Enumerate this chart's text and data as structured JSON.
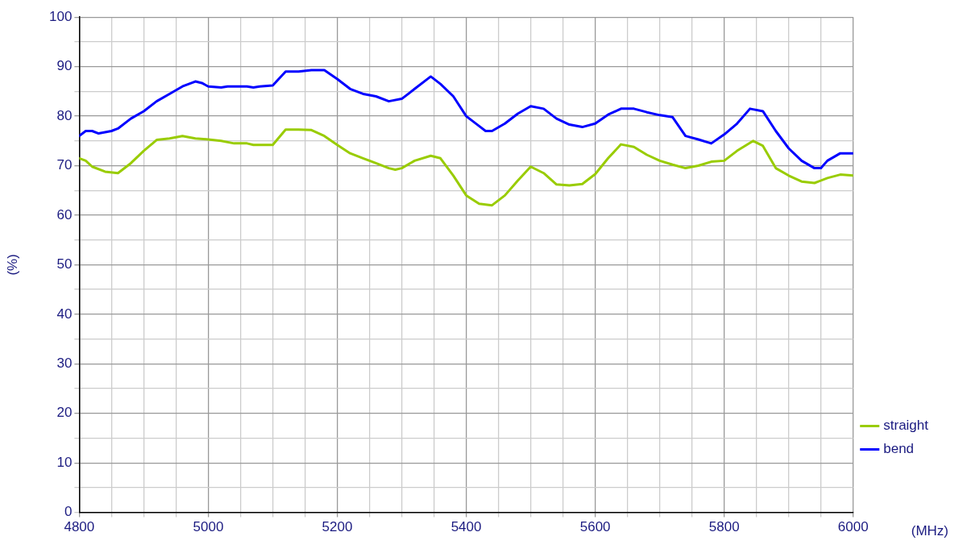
{
  "chart_data": {
    "type": "line",
    "xlabel": "(MHz)",
    "ylabel": "(%)",
    "xlim": [
      4800,
      6000
    ],
    "ylim": [
      0,
      100
    ],
    "xticks": [
      4800,
      {
        "value": 4850,
        "label": null
      },
      {
        "value": 4900,
        "label": null
      },
      {
        "value": 4950,
        "label": null
      },
      5000,
      {
        "value": 5050,
        "label": null
      },
      {
        "value": 5100,
        "label": null
      },
      {
        "value": 5150,
        "label": null
      },
      5200,
      {
        "value": 5250,
        "label": null
      },
      {
        "value": 5300,
        "label": null
      },
      {
        "value": 5350,
        "label": null
      },
      5400,
      {
        "value": 5450,
        "label": null
      },
      {
        "value": 5500,
        "label": null
      },
      {
        "value": 5550,
        "label": null
      },
      5600,
      {
        "value": 5650,
        "label": null
      },
      {
        "value": 5700,
        "label": null
      },
      {
        "value": 5750,
        "label": null
      },
      5800,
      {
        "value": 5850,
        "label": null
      },
      {
        "value": 5900,
        "label": null
      },
      {
        "value": 5950,
        "label": null
      },
      6000
    ],
    "yticks": [
      0,
      {
        "value": 5,
        "label": null
      },
      10,
      {
        "value": 15,
        "label": null
      },
      20,
      {
        "value": 25,
        "label": null
      },
      30,
      {
        "value": 35,
        "label": null
      },
      40,
      {
        "value": 45,
        "label": null
      },
      50,
      {
        "value": 55,
        "label": null
      },
      60,
      {
        "value": 65,
        "label": null
      },
      70,
      {
        "value": 75,
        "label": null
      },
      80,
      {
        "value": 85,
        "label": null
      },
      90,
      {
        "value": 95,
        "label": null
      },
      100
    ],
    "grid": true,
    "legend": "bottom right",
    "marker": "none",
    "line_style": "solid",
    "series": [
      {
        "name": "straight",
        "color": "#99cc00",
        "x": [
          4800,
          4810,
          4820,
          4840,
          4860,
          4880,
          4900,
          4920,
          4940,
          4960,
          4980,
          5000,
          5020,
          5040,
          5060,
          5070,
          5100,
          5120,
          5140,
          5160,
          5180,
          5200,
          5220,
          5240,
          5260,
          5280,
          5290,
          5300,
          5320,
          5345,
          5360,
          5380,
          5400,
          5420,
          5440,
          5460,
          5480,
          5500,
          5520,
          5540,
          5560,
          5580,
          5600,
          5620,
          5640,
          5660,
          5680,
          5700,
          5720,
          5740,
          5760,
          5780,
          5800,
          5820,
          5845,
          5860,
          5880,
          5900,
          5920,
          5940,
          5960,
          5980,
          6000
        ],
        "values": [
          71.5,
          71,
          69.8,
          68.8,
          68.5,
          70.5,
          73,
          75.2,
          75.5,
          76,
          75.5,
          75.3,
          75,
          74.5,
          74.5,
          74.2,
          74.2,
          77.3,
          77.3,
          77.2,
          76,
          74.2,
          72.5,
          71.5,
          70.5,
          69.5,
          69.2,
          69.5,
          71,
          72,
          71.5,
          68,
          64,
          62.3,
          62,
          64,
          67,
          69.8,
          68.5,
          66.2,
          66,
          66.3,
          68.3,
          71.5,
          74.3,
          73.8,
          72.2,
          71,
          70.2,
          69.5,
          70,
          70.8,
          71,
          73,
          75,
          74,
          69.5,
          68,
          66.8,
          66.5,
          67.5,
          68.2,
          68
        ]
      },
      {
        "name": "bend",
        "color": "#0000ff",
        "x": [
          4800,
          4810,
          4820,
          4830,
          4850,
          4860,
          4880,
          4900,
          4920,
          4940,
          4960,
          4980,
          4990,
          5000,
          5020,
          5030,
          5060,
          5070,
          5080,
          5100,
          5120,
          5140,
          5160,
          5180,
          5200,
          5220,
          5240,
          5260,
          5280,
          5300,
          5320,
          5345,
          5360,
          5380,
          5400,
          5420,
          5430,
          5440,
          5460,
          5480,
          5500,
          5520,
          5540,
          5560,
          5580,
          5600,
          5620,
          5640,
          5660,
          5680,
          5700,
          5720,
          5740,
          5760,
          5780,
          5800,
          5820,
          5840,
          5860,
          5880,
          5900,
          5920,
          5940,
          5950,
          5960,
          5980,
          6000
        ],
        "values": [
          76,
          77,
          77,
          76.5,
          77,
          77.5,
          79.5,
          81,
          83,
          84.5,
          86,
          87,
          86.7,
          86,
          85.8,
          86,
          86,
          85.8,
          86,
          86.2,
          89,
          89,
          89.3,
          89.3,
          87.5,
          85.5,
          84.5,
          84,
          83,
          83.5,
          85.5,
          88,
          86.5,
          84,
          80,
          78,
          77,
          77,
          78.5,
          80.5,
          82,
          81.5,
          79.5,
          78.3,
          77.8,
          78.5,
          80.3,
          81.5,
          81.5,
          80.8,
          80.2,
          79.8,
          76,
          75.3,
          74.5,
          76.3,
          78.5,
          81.5,
          81,
          77,
          73.5,
          71,
          69.5,
          69.5,
          71,
          72.5,
          72.5
        ]
      }
    ]
  }
}
